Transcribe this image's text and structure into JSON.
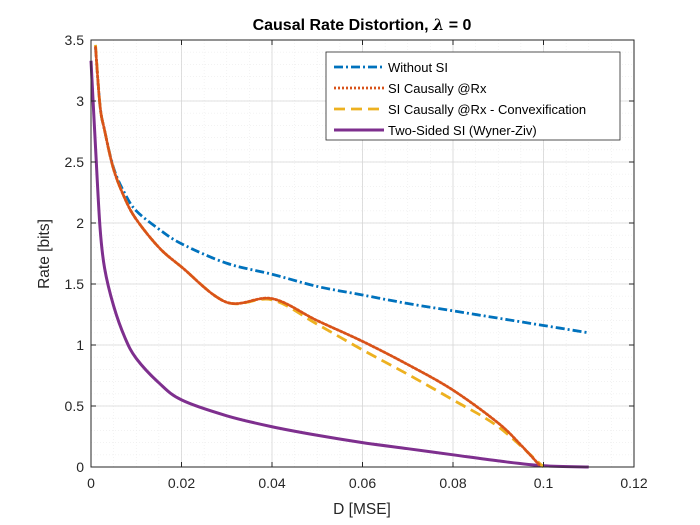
{
  "chart_data": {
    "type": "line",
    "title_prefix": "Causal Rate Distortion, ",
    "title_symbol": "λ",
    "title_suffix": " = 0",
    "xlabel": "D [MSE]",
    "ylabel": "Rate [bits]",
    "xlim": [
      0,
      0.12
    ],
    "ylim": [
      0,
      3.5
    ],
    "xticks": [
      0,
      0.02,
      0.04,
      0.06,
      0.08,
      0.1,
      0.12
    ],
    "xtick_labels": [
      "0",
      "0.02",
      "0.04",
      "0.06",
      "0.08",
      "0.1",
      "0.12"
    ],
    "yticks": [
      0,
      0.5,
      1,
      1.5,
      2,
      2.5,
      3,
      3.5
    ],
    "ytick_labels": [
      "0",
      "0.5",
      "1",
      "1.5",
      "2",
      "2.5",
      "3",
      "3.5"
    ],
    "grid": true,
    "minor_grid": true,
    "legend_position": "top-right",
    "series": [
      {
        "name": "Without SI",
        "color": "#0072BD",
        "dash": "dash-dot",
        "x": [
          0.001,
          0.002,
          0.003,
          0.005,
          0.0075,
          0.01,
          0.015,
          0.02,
          0.03,
          0.04,
          0.05,
          0.06,
          0.07,
          0.08,
          0.09,
          0.1,
          0.11
        ],
        "y": [
          3.44,
          2.96,
          2.76,
          2.45,
          2.24,
          2.1,
          1.95,
          1.83,
          1.67,
          1.58,
          1.48,
          1.41,
          1.34,
          1.28,
          1.22,
          1.16,
          1.1
        ]
      },
      {
        "name": "SI Causally @Rx",
        "color": "#D95319",
        "dash": "dotted",
        "x": [
          0.001,
          0.002,
          0.003,
          0.005,
          0.0075,
          0.01,
          0.015,
          0.02,
          0.03,
          0.04,
          0.05,
          0.06,
          0.07,
          0.08,
          0.09,
          0.095,
          0.099
        ],
        "y": [
          3.44,
          2.96,
          2.76,
          2.44,
          2.2,
          2.03,
          1.8,
          1.64,
          1.35,
          1.38,
          1.2,
          1.03,
          0.84,
          0.63,
          0.36,
          0.18,
          0.02
        ]
      },
      {
        "name": "SI Causally @Rx - Convexification",
        "color": "#EDB120",
        "dash": "dashed",
        "x": [
          0.001,
          0.002,
          0.003,
          0.005,
          0.0075,
          0.01,
          0.015,
          0.02,
          0.03,
          0.04,
          0.05,
          0.06,
          0.07,
          0.08,
          0.09,
          0.1
        ],
        "y": [
          3.46,
          2.96,
          2.76,
          2.44,
          2.2,
          2.03,
          1.8,
          1.64,
          1.35,
          1.37,
          1.17,
          0.96,
          0.76,
          0.55,
          0.33,
          0.0
        ]
      },
      {
        "name": "Two-Sided SI (Wyner-Ziv)",
        "color": "#7E2F8E",
        "dash": "solid",
        "x": [
          0.0,
          0.001,
          0.002,
          0.003,
          0.005,
          0.0075,
          0.01,
          0.015,
          0.02,
          0.03,
          0.04,
          0.05,
          0.06,
          0.07,
          0.08,
          0.09,
          0.1,
          0.11
        ],
        "y": [
          3.33,
          2.62,
          1.96,
          1.63,
          1.32,
          1.06,
          0.89,
          0.69,
          0.55,
          0.42,
          0.33,
          0.26,
          0.2,
          0.15,
          0.1,
          0.05,
          0.01,
          0.0
        ]
      }
    ]
  }
}
